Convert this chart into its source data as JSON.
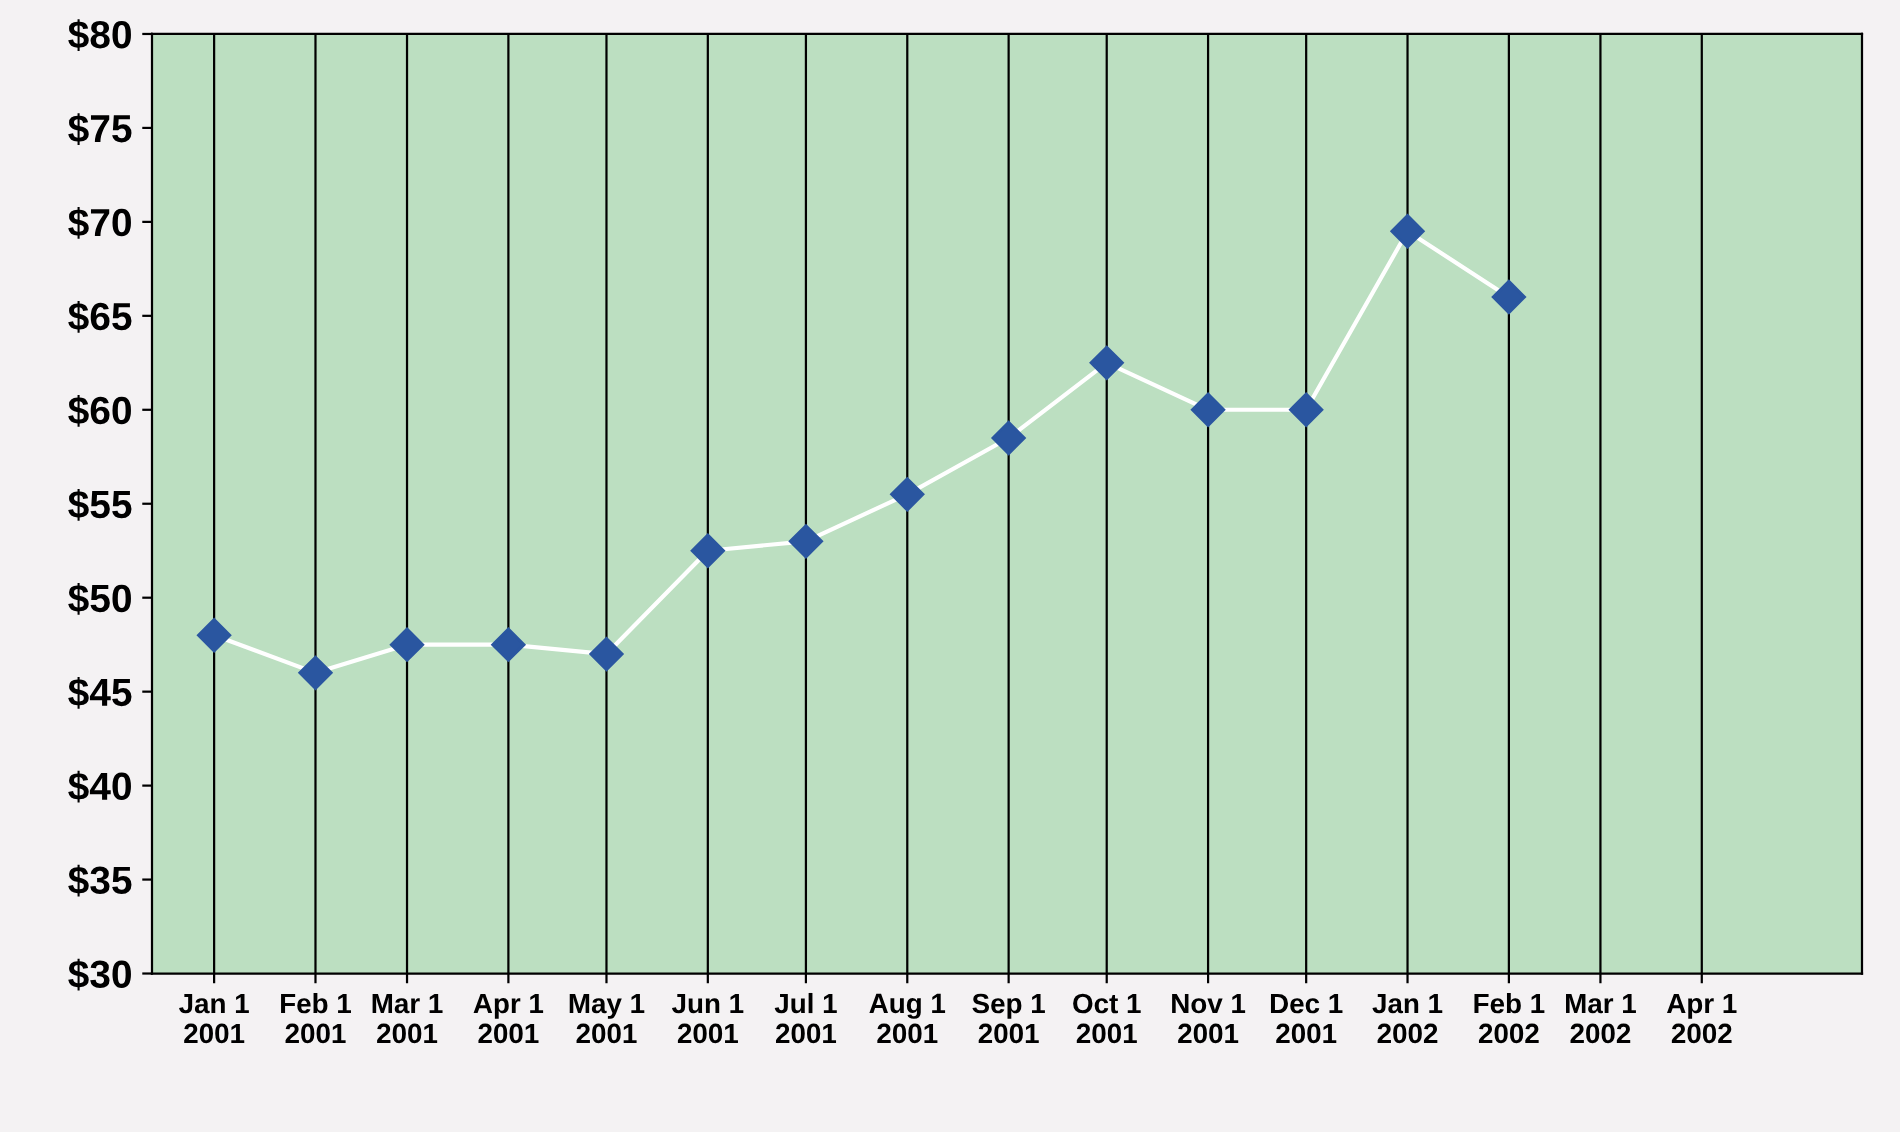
{
  "chart_data": {
    "type": "line",
    "x": [
      "2001-01-01",
      "2001-02-01",
      "2001-03-01",
      "2001-04-01",
      "2001-05-01",
      "2001-06-01",
      "2001-07-01",
      "2001-08-01",
      "2001-09-01",
      "2001-10-01",
      "2001-11-01",
      "2001-12-01",
      "2002-01-01",
      "2002-02-01"
    ],
    "series": [
      {
        "color": "#2a56a0",
        "values": [
          48,
          46,
          47.5,
          47.5,
          47,
          52.5,
          53,
          55.5,
          58.5,
          62.5,
          60,
          60,
          69.5,
          66
        ]
      }
    ],
    "marker": "diamond",
    "xlim": [
      "2000-12-13",
      "2002-05-20"
    ],
    "xticks": [
      {
        "value": "2001-01-01",
        "label": "Jan 1\n2001"
      },
      {
        "value": "2001-02-01",
        "label": "Feb 1\n2001"
      },
      {
        "value": "2001-03-01",
        "label": "Mar 1\n2001"
      },
      {
        "value": "2001-04-01",
        "label": "Apr 1\n2001"
      },
      {
        "value": "2001-05-01",
        "label": "May 1\n2001"
      },
      {
        "value": "2001-06-01",
        "label": "Jun 1\n2001"
      },
      {
        "value": "2001-07-01",
        "label": "Jul 1\n2001"
      },
      {
        "value": "2001-08-01",
        "label": "Aug 1\n2001"
      },
      {
        "value": "2001-09-01",
        "label": "Sep 1\n2001"
      },
      {
        "value": "2001-10-01",
        "label": "Oct 1\n2001"
      },
      {
        "value": "2001-11-01",
        "label": "Nov 1\n2001"
      },
      {
        "value": "2001-12-01",
        "label": "Dec 1\n2001"
      },
      {
        "value": "2002-01-01",
        "label": "Jan 1\n2002"
      },
      {
        "value": "2002-02-01",
        "label": "Feb 1\n2002"
      },
      {
        "value": "2002-03-01",
        "label": "Mar 1\n2002"
      },
      {
        "value": "2002-04-01",
        "label": "Apr 1\n2002"
      }
    ],
    "ylim": [
      30,
      80
    ],
    "yticks": [
      {
        "value": 30,
        "label": "$30"
      },
      {
        "value": 35,
        "label": "$35"
      },
      {
        "value": 40,
        "label": "$40"
      },
      {
        "value": 45,
        "label": "$45"
      },
      {
        "value": 50,
        "label": "$50"
      },
      {
        "value": 55,
        "label": "$55"
      },
      {
        "value": 60,
        "label": "$60"
      },
      {
        "value": 65,
        "label": "$65"
      },
      {
        "value": 70,
        "label": "$70"
      },
      {
        "value": 75,
        "label": "$75"
      },
      {
        "value": 80,
        "label": "$80"
      }
    ],
    "grid": "x",
    "legend": false
  }
}
